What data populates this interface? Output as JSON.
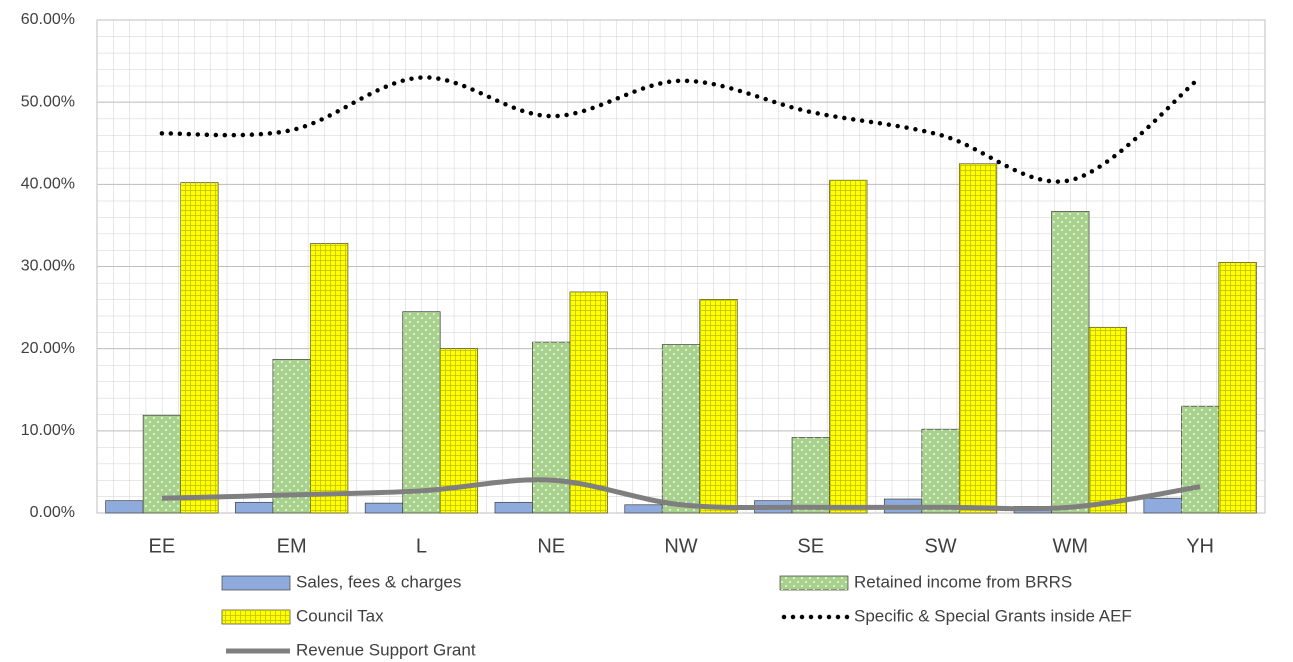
{
  "chart_data": {
    "type": "bar",
    "categories": [
      "EE",
      "EM",
      "L",
      "NE",
      "NW",
      "SE",
      "SW",
      "WM",
      "YH"
    ],
    "series": [
      {
        "name": "Sales, fees & charges",
        "type": "bar",
        "color": "#8faadc",
        "pattern": "plain",
        "values": [
          1.5,
          1.3,
          1.2,
          1.3,
          1.0,
          1.5,
          1.7,
          0.8,
          1.8
        ]
      },
      {
        "name": "Retained income from BRRS",
        "type": "bar",
        "color": "#a9d18e",
        "pattern": "dots",
        "values": [
          11.9,
          18.7,
          24.5,
          20.8,
          20.5,
          9.2,
          10.2,
          36.7,
          13.0
        ]
      },
      {
        "name": "Council Tax",
        "type": "bar",
        "color": "#ffff00",
        "pattern": "grid",
        "values": [
          40.2,
          32.8,
          20.0,
          26.9,
          26.0,
          40.5,
          42.5,
          22.6,
          30.5
        ]
      },
      {
        "name": "Specific & Special Grants inside AEF",
        "type": "line",
        "color": "#000000",
        "dash": "dotted",
        "values": [
          46.2,
          46.6,
          53.0,
          48.3,
          52.6,
          48.8,
          46.0,
          40.5,
          53.0
        ]
      },
      {
        "name": "Revenue Support Grant",
        "type": "line",
        "color": "#7f7f7f",
        "dash": "solid",
        "values": [
          1.8,
          2.2,
          2.7,
          4.0,
          1.0,
          0.7,
          0.7,
          0.7,
          3.2
        ]
      }
    ],
    "ylim": [
      0,
      60
    ],
    "yticks": [
      {
        "value": 0,
        "label": "0.00%"
      },
      {
        "value": 10,
        "label": "10.00%"
      },
      {
        "value": 20,
        "label": "20.00%"
      },
      {
        "value": 30,
        "label": "30.00%"
      },
      {
        "value": 40,
        "label": "40.00%"
      },
      {
        "value": 50,
        "label": "50.00%"
      },
      {
        "value": 60,
        "label": "60.00%"
      }
    ],
    "grid": true,
    "legend": "bottom"
  }
}
